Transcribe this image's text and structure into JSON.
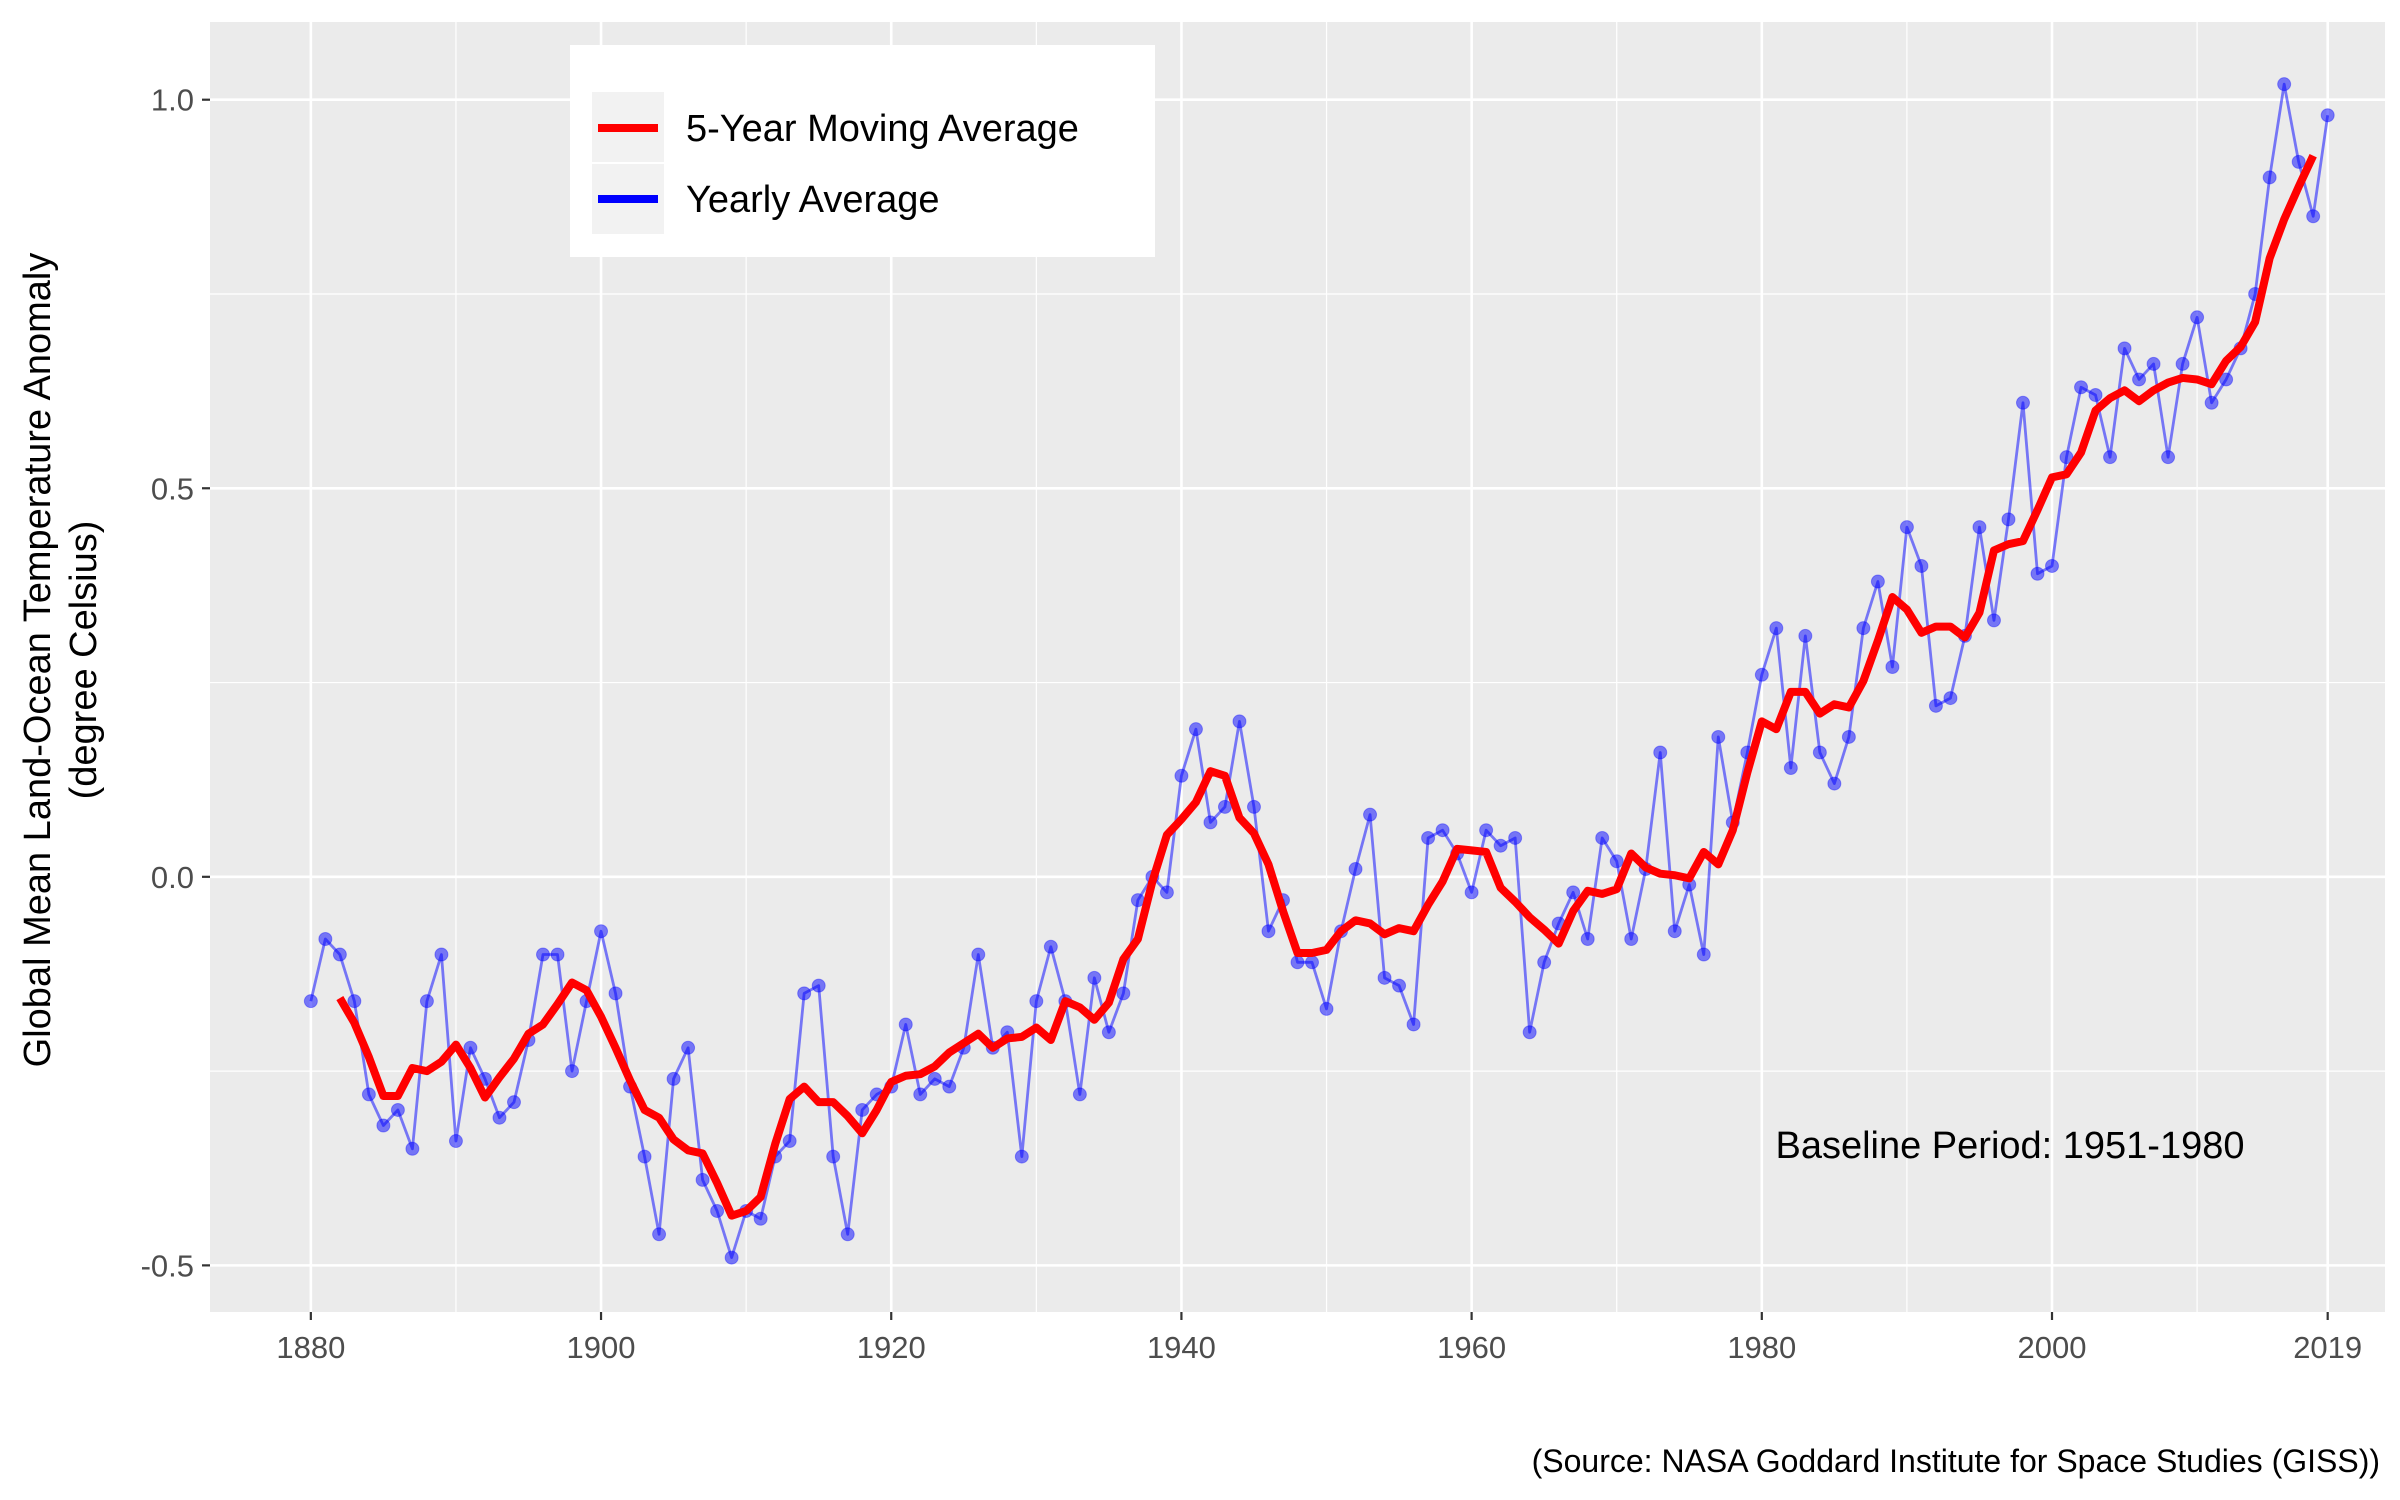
{
  "chart_data": {
    "type": "line",
    "title": "",
    "xlabel": "",
    "ylabel_lines": [
      "Global Mean Land-Ocean Temperature Anomaly",
      "(degree Celsius)"
    ],
    "caption": "(Source: NASA Goddard Institute for Space Studies (GISS))",
    "annotation": "Baseline Period: 1951-1980",
    "xlim": [
      1873.05,
      2022.95
    ],
    "ylim": [
      -0.56,
      1.1
    ],
    "x_ticks": [
      1880,
      1900,
      1920,
      1940,
      1960,
      1980,
      2000,
      2019
    ],
    "x_tick_labels": [
      "1880",
      "1900",
      "1920",
      "1940",
      "1960",
      "1980",
      "2000",
      "2019"
    ],
    "y_ticks": [
      -0.5,
      0.0,
      0.5,
      1.0
    ],
    "y_tick_labels": [
      "-0.5",
      "0.0",
      "0.5",
      "1.0"
    ],
    "grid": true,
    "legend": {
      "position": "top-left",
      "entries": [
        {
          "label": "5-Year Moving Average",
          "color": "#ff0000"
        },
        {
          "label": "Yearly Average",
          "color": "#0000ff"
        }
      ]
    },
    "colors": {
      "panel_bg": "#ebebeb",
      "grid": "#ffffff",
      "yearly": "#0000ff",
      "moving": "#ff0000"
    },
    "series": [
      {
        "name": "Yearly Average",
        "x": [
          1880,
          1881,
          1882,
          1883,
          1884,
          1885,
          1886,
          1887,
          1888,
          1889,
          1890,
          1891,
          1892,
          1893,
          1894,
          1895,
          1896,
          1897,
          1898,
          1899,
          1900,
          1901,
          1902,
          1903,
          1904,
          1905,
          1906,
          1907,
          1908,
          1909,
          1910,
          1911,
          1912,
          1913,
          1914,
          1915,
          1916,
          1917,
          1918,
          1919,
          1920,
          1921,
          1922,
          1923,
          1924,
          1925,
          1926,
          1927,
          1928,
          1929,
          1930,
          1931,
          1932,
          1933,
          1934,
          1935,
          1936,
          1937,
          1938,
          1939,
          1940,
          1941,
          1942,
          1943,
          1944,
          1945,
          1946,
          1947,
          1948,
          1949,
          1950,
          1951,
          1952,
          1953,
          1954,
          1955,
          1956,
          1957,
          1958,
          1959,
          1960,
          1961,
          1962,
          1963,
          1964,
          1965,
          1966,
          1967,
          1968,
          1969,
          1970,
          1971,
          1972,
          1973,
          1974,
          1975,
          1976,
          1977,
          1978,
          1979,
          1980,
          1981,
          1982,
          1983,
          1984,
          1985,
          1986,
          1987,
          1988,
          1989,
          1990,
          1991,
          1992,
          1993,
          1994,
          1995,
          1996,
          1997,
          1998,
          1999,
          2000,
          2001,
          2002,
          2003,
          2004,
          2005,
          2006,
          2007,
          2008,
          2009,
          2010,
          2011,
          2012,
          2013,
          2014,
          2015,
          2016,
          2017,
          2018,
          2019
        ],
        "values": [
          -0.16,
          -0.08,
          -0.1,
          -0.16,
          -0.28,
          -0.32,
          -0.3,
          -0.35,
          -0.16,
          -0.1,
          -0.34,
          -0.22,
          -0.26,
          -0.31,
          -0.29,
          -0.21,
          -0.1,
          -0.1,
          -0.25,
          -0.16,
          -0.07,
          -0.15,
          -0.27,
          -0.36,
          -0.46,
          -0.26,
          -0.22,
          -0.39,
          -0.43,
          -0.49,
          -0.43,
          -0.44,
          -0.36,
          -0.34,
          -0.15,
          -0.14,
          -0.36,
          -0.46,
          -0.3,
          -0.28,
          -0.27,
          -0.19,
          -0.28,
          -0.26,
          -0.27,
          -0.22,
          -0.1,
          -0.22,
          -0.2,
          -0.36,
          -0.16,
          -0.09,
          -0.16,
          -0.28,
          -0.13,
          -0.2,
          -0.15,
          -0.03,
          0.0,
          -0.02,
          0.13,
          0.19,
          0.07,
          0.09,
          0.2,
          0.09,
          -0.07,
          -0.03,
          -0.11,
          -0.11,
          -0.17,
          -0.07,
          0.01,
          0.08,
          -0.13,
          -0.14,
          -0.19,
          0.05,
          0.06,
          0.03,
          -0.02,
          0.06,
          0.04,
          0.05,
          -0.2,
          -0.11,
          -0.06,
          -0.02,
          -0.08,
          0.05,
          0.02,
          -0.08,
          0.01,
          0.16,
          -0.07,
          -0.01,
          -0.1,
          0.18,
          0.07,
          0.16,
          0.26,
          0.32,
          0.14,
          0.31,
          0.16,
          0.12,
          0.18,
          0.32,
          0.38,
          0.27,
          0.45,
          0.4,
          0.22,
          0.23,
          0.31,
          0.45,
          0.33,
          0.46,
          0.61,
          0.39,
          0.4,
          0.54,
          0.63,
          0.62,
          0.54,
          0.68,
          0.64,
          0.66,
          0.54,
          0.66,
          0.72,
          0.61,
          0.64,
          0.68,
          0.75,
          0.9,
          1.02,
          0.92,
          0.85,
          0.98
        ]
      },
      {
        "name": "5-Year Moving Average",
        "x": [
          1882,
          1883,
          1884,
          1885,
          1886,
          1887,
          1888,
          1889,
          1890,
          1891,
          1892,
          1893,
          1894,
          1895,
          1896,
          1897,
          1898,
          1899,
          1900,
          1901,
          1902,
          1903,
          1904,
          1905,
          1906,
          1907,
          1908,
          1909,
          1910,
          1911,
          1912,
          1913,
          1914,
          1915,
          1916,
          1917,
          1918,
          1919,
          1920,
          1921,
          1922,
          1923,
          1924,
          1925,
          1926,
          1927,
          1928,
          1929,
          1930,
          1931,
          1932,
          1933,
          1934,
          1935,
          1936,
          1937,
          1938,
          1939,
          1940,
          1941,
          1942,
          1943,
          1944,
          1945,
          1946,
          1947,
          1948,
          1949,
          1950,
          1951,
          1952,
          1953,
          1954,
          1955,
          1956,
          1957,
          1958,
          1959,
          1960,
          1961,
          1962,
          1963,
          1964,
          1965,
          1966,
          1967,
          1968,
          1969,
          1970,
          1971,
          1972,
          1973,
          1974,
          1975,
          1976,
          1977,
          1978,
          1979,
          1980,
          1981,
          1982,
          1983,
          1984,
          1985,
          1986,
          1987,
          1988,
          1989,
          1990,
          1991,
          1992,
          1993,
          1994,
          1995,
          1996,
          1997,
          1998,
          1999,
          2000,
          2001,
          2002,
          2003,
          2004,
          2005,
          2006,
          2007,
          2008,
          2009,
          2010,
          2011,
          2012,
          2013,
          2014,
          2015,
          2016,
          2017,
          2018
        ],
        "values": [
          -0.156,
          -0.188,
          -0.232,
          -0.282,
          -0.282,
          -0.246,
          -0.25,
          -0.238,
          -0.216,
          -0.246,
          -0.284,
          -0.258,
          -0.234,
          -0.202,
          -0.19,
          -0.164,
          -0.136,
          -0.146,
          -0.18,
          -0.22,
          -0.262,
          -0.3,
          -0.31,
          -0.338,
          -0.352,
          -0.356,
          -0.394,
          -0.436,
          -0.43,
          -0.412,
          -0.344,
          -0.286,
          -0.27,
          -0.29,
          -0.29,
          -0.308,
          -0.33,
          -0.3,
          -0.264,
          -0.256,
          -0.254,
          -0.244,
          -0.226,
          -0.214,
          -0.202,
          -0.22,
          -0.208,
          -0.206,
          -0.194,
          -0.21,
          -0.16,
          -0.168,
          -0.184,
          -0.162,
          -0.106,
          -0.08,
          -0.006,
          0.054,
          0.074,
          0.096,
          0.136,
          0.13,
          0.076,
          0.056,
          0.016,
          -0.044,
          -0.098,
          -0.098,
          -0.094,
          -0.07,
          -0.056,
          -0.06,
          -0.074,
          -0.066,
          -0.07,
          -0.036,
          -0.006,
          0.036,
          0.034,
          0.032,
          -0.014,
          -0.032,
          -0.052,
          -0.068,
          -0.086,
          -0.044,
          -0.018,
          -0.022,
          -0.016,
          0.03,
          0.012,
          0.004,
          0.002,
          -0.002,
          0.032,
          0.016,
          0.06,
          0.134,
          0.2,
          0.19,
          0.238,
          0.238,
          0.21,
          0.222,
          0.218,
          0.252,
          0.304,
          0.36,
          0.344,
          0.314,
          0.322,
          0.322,
          0.308,
          0.34,
          0.42,
          0.428,
          0.432,
          0.472,
          0.514,
          0.518,
          0.546,
          0.6,
          0.616,
          0.626,
          0.612,
          0.626,
          0.636,
          0.642,
          0.64,
          0.634,
          0.664,
          0.682,
          0.714,
          0.796,
          0.846,
          0.888,
          0.928
        ]
      }
    ]
  }
}
